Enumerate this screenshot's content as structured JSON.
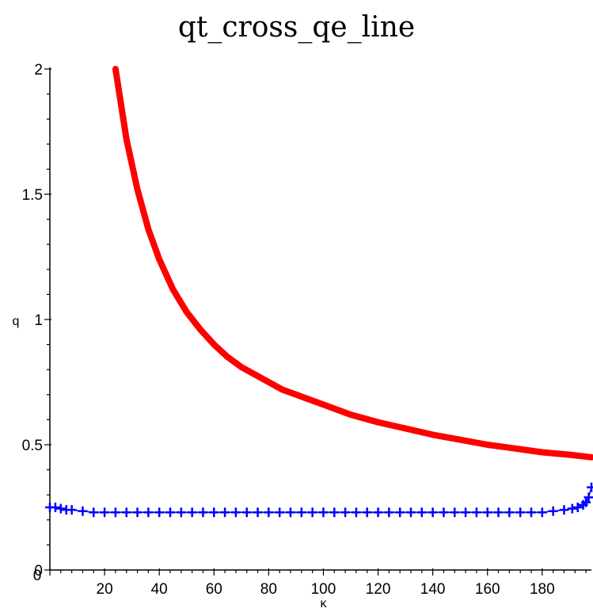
{
  "chart_data": {
    "type": "line",
    "title": "qt_cross_qe_line",
    "xlabel": "κ",
    "ylabel": "q",
    "xlim": [
      0,
      198
    ],
    "ylim": [
      0,
      2
    ],
    "x_ticks": [
      20,
      40,
      60,
      80,
      100,
      120,
      140,
      160,
      180
    ],
    "y_ticks": [
      0,
      0.5,
      1,
      1.5,
      2
    ],
    "y_tick_labels": [
      "0",
      "0.5",
      "1",
      "1.5",
      "2"
    ],
    "x_origin_label": "0",
    "grid": false,
    "series": [
      {
        "color": "#ff0000",
        "style": "solid",
        "x": [
          24,
          28,
          32,
          36,
          40,
          45,
          50,
          55,
          60,
          65,
          70,
          75,
          80,
          85,
          90,
          100,
          110,
          120,
          130,
          140,
          150,
          160,
          170,
          180,
          190,
          198
        ],
        "y": [
          2.0,
          1.72,
          1.52,
          1.36,
          1.24,
          1.12,
          1.03,
          0.96,
          0.9,
          0.85,
          0.81,
          0.78,
          0.75,
          0.72,
          0.7,
          0.66,
          0.62,
          0.59,
          0.565,
          0.54,
          0.52,
          0.5,
          0.485,
          0.47,
          0.46,
          0.45
        ]
      },
      {
        "color": "#0000ff",
        "style": "cross-markers",
        "x": [
          0,
          2,
          4,
          6,
          8,
          12,
          16,
          20,
          24,
          28,
          32,
          36,
          40,
          44,
          48,
          52,
          56,
          60,
          64,
          68,
          72,
          76,
          80,
          84,
          88,
          92,
          96,
          100,
          104,
          108,
          112,
          116,
          120,
          124,
          128,
          132,
          136,
          140,
          144,
          148,
          152,
          156,
          160,
          164,
          168,
          172,
          176,
          180,
          184,
          188,
          191,
          193,
          195,
          196,
          197,
          198
        ],
        "y": [
          0.25,
          0.25,
          0.245,
          0.24,
          0.24,
          0.235,
          0.23,
          0.23,
          0.23,
          0.23,
          0.23,
          0.23,
          0.23,
          0.23,
          0.23,
          0.23,
          0.23,
          0.23,
          0.23,
          0.23,
          0.23,
          0.23,
          0.23,
          0.23,
          0.23,
          0.23,
          0.23,
          0.23,
          0.23,
          0.23,
          0.23,
          0.23,
          0.23,
          0.23,
          0.23,
          0.23,
          0.23,
          0.23,
          0.23,
          0.23,
          0.23,
          0.23,
          0.23,
          0.23,
          0.23,
          0.23,
          0.23,
          0.23,
          0.235,
          0.24,
          0.245,
          0.25,
          0.26,
          0.27,
          0.29,
          0.33
        ]
      }
    ]
  }
}
